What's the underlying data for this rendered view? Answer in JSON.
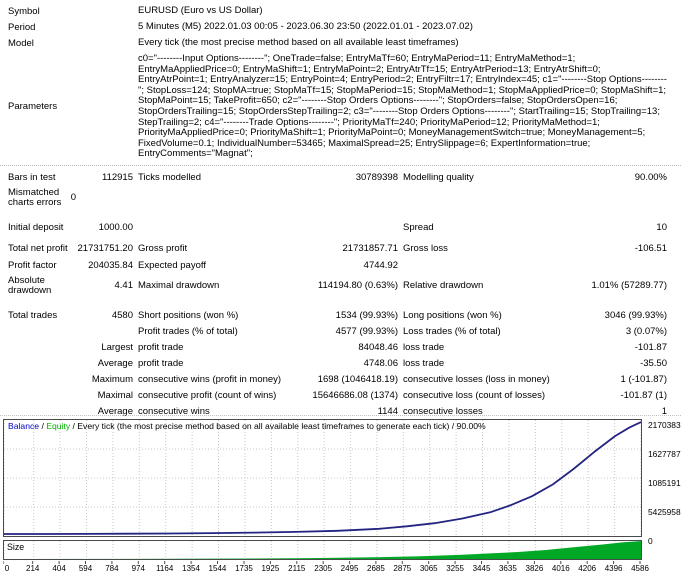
{
  "info_rows": [
    {
      "label": "Symbol",
      "value": "EURUSD (Euro vs US Dollar)"
    },
    {
      "label": "Period",
      "value": "5 Minutes (M5) 2022.01.03 00:05 - 2023.06.30 23:50 (2022.01.01 - 2023.07.02)"
    },
    {
      "label": "Model",
      "value": "Every tick (the most precise method based on all available least timeframes)"
    },
    {
      "label": "Parameters",
      "value": "c0=\"--------Input Options--------\"; OneTrade=false; EntryMaTf=60; EntryMaPeriod=11; EntryMaMethod=1; EntryMaAppliedPrice=0; EntryMaShift=1; EntryMaPoint=2; EntryAtrTf=15; EntryAtrPeriod=13; EntryAtrShift=0; EntryAtrPoint=1; EntryAnalyzer=15; EntryPoint=4; EntryPeriod=2; EntryFiltr=17; EntryIndex=45; c1=\"--------Stop Options--------\"; StopLoss=124; StopMA=true; StopMaTf=15; StopMaPeriod=15; StopMaMethod=1; StopMaAppliedPrice=0; StopMaShift=1; StopMaPoint=15; TakeProfit=650; c2=\"--------Stop Orders Options--------\"; StopOrders=false; StopOrdersOpen=16; StopOrdersTrailing=15; StopOrdersStepTrailing=2; c3=\"--------Stop Orders Options--------\"; StartTrailing=15; StopTrailing=13; StepTrailing=2; c4=\"--------Trade Options--------\"; PriorityMaTf=240; PriorityMaPeriod=12; PriorityMaMethod=1; PriorityMaAppliedPrice=0; PriorityMaShift=1; PriorityMaPoint=0; MoneyManagementSwitch=true; MoneyManagement=5; FixedVolume=0.1; IndividualNumber=53465; MaximalSpread=25; EntrySlippage=6; ExpertInformation=true; EntryComments=\"Magnat\";"
    }
  ],
  "stats_rows": [
    {
      "l1": "Bars in test",
      "v1": "112915",
      "l2": "Ticks modelled",
      "v2": "30789398",
      "l3": "Modelling quality",
      "v3": "90.00%"
    },
    {
      "l1": "Mismatched charts errors",
      "v1": "0"
    },
    {
      "l1": "Initial deposit",
      "v1": "1000.00",
      "l3": "Spread",
      "v3": "10"
    },
    {
      "l1": "Total net profit",
      "v1": "21731751.20",
      "l2": "Gross profit",
      "v2": "21731857.71",
      "l3": "Gross loss",
      "v3": "-106.51"
    },
    {
      "l1": "Profit factor",
      "v1": "204035.84",
      "l2": "Expected payoff",
      "v2": "4744.92"
    },
    {
      "l1": "Absolute drawdown",
      "v1": "4.41",
      "l2": "Maximal drawdown",
      "v2": "114194.80 (0.63%)",
      "l3": "Relative drawdown",
      "v3": "1.01% (57289.77)"
    },
    {
      "l1": "Total trades",
      "v1": "4580",
      "l2": "Short positions (won %)",
      "v2": "1534 (99.93%)",
      "l3": "Long positions (won %)",
      "v3": "3046 (99.93%)"
    },
    {
      "l2": "Profit trades (% of total)",
      "v2": "4577 (99.93%)",
      "l3": "Loss trades (% of total)",
      "v3": "3 (0.07%)"
    },
    {
      "v1": "Largest",
      "l2": "profit trade",
      "v2": "84048.46",
      "l3": "loss trade",
      "v3": "-101.87"
    },
    {
      "v1": "Average",
      "l2": "profit trade",
      "v2": "4748.06",
      "l3": "loss trade",
      "v3": "-35.50"
    },
    {
      "v1": "Maximum",
      "l2": "consecutive wins (profit in money)",
      "v2": "1698 (1046418.19)",
      "l3": "consecutive losses (loss in money)",
      "v3": "1 (-101.87)"
    },
    {
      "v1": "Maximal",
      "l2": "consecutive profit (count of wins)",
      "v2": "15646686.08 (1374)",
      "l3": "consecutive loss (count of losses)",
      "v3": "-101.87 (1)"
    },
    {
      "v1": "Average",
      "l2": "consecutive wins",
      "v2": "1144",
      "l3": "consecutive losses",
      "v3": "1"
    }
  ],
  "chart_data": {
    "type": "line",
    "legend": {
      "balance_label": "Balance",
      "equity_label": "Equity",
      "separator": " / ",
      "description": "/ Every tick (the most precise method based on all available least timeframes to generate each tick) / 90.00%"
    },
    "colors": {
      "balance_line": "#242482",
      "balance_legend": "#0000c8",
      "equity_legend": "#00b000",
      "size_fill": "#00a826",
      "grid": "#c9c9c9",
      "border": "#4a4a4a"
    },
    "y_ticks": [
      "21703831",
      "16277873",
      "10851915",
      "5425958",
      "0"
    ],
    "x_ticks": [
      0,
      214,
      404,
      594,
      784,
      974,
      1164,
      1354,
      1544,
      1735,
      1925,
      2115,
      2305,
      2495,
      2685,
      2875,
      3065,
      3255,
      3445,
      3635,
      3826,
      4016,
      4206,
      4396,
      4586
    ],
    "x_max": 4586,
    "y_max": 21703831,
    "series": [
      {
        "name": "Balance",
        "points": [
          [
            0,
            2000
          ],
          [
            300,
            8000
          ],
          [
            600,
            25000
          ],
          [
            900,
            55000
          ],
          [
            1200,
            100000
          ],
          [
            1500,
            170000
          ],
          [
            1800,
            270000
          ],
          [
            2100,
            400000
          ],
          [
            2400,
            620000
          ],
          [
            2700,
            1000000
          ],
          [
            2900,
            1500000
          ],
          [
            3100,
            2100000
          ],
          [
            3300,
            3000000
          ],
          [
            3500,
            4200000
          ],
          [
            3650,
            5600000
          ],
          [
            3800,
            7300000
          ],
          [
            3950,
            9600000
          ],
          [
            4100,
            12600000
          ],
          [
            4250,
            15900000
          ],
          [
            4400,
            19000000
          ],
          [
            4500,
            20600000
          ],
          [
            4586,
            21703831
          ]
        ]
      }
    ],
    "size_label": "Size",
    "size_histogram": {
      "points": [
        [
          0,
          0
        ],
        [
          1200,
          0.01
        ],
        [
          1800,
          0.03
        ],
        [
          2200,
          0.05
        ],
        [
          2600,
          0.09
        ],
        [
          3000,
          0.15
        ],
        [
          3300,
          0.24
        ],
        [
          3500,
          0.31
        ],
        [
          3700,
          0.39
        ],
        [
          3900,
          0.5
        ],
        [
          4100,
          0.65
        ],
        [
          4300,
          0.8
        ],
        [
          4450,
          0.92
        ],
        [
          4586,
          1.0
        ]
      ]
    }
  }
}
